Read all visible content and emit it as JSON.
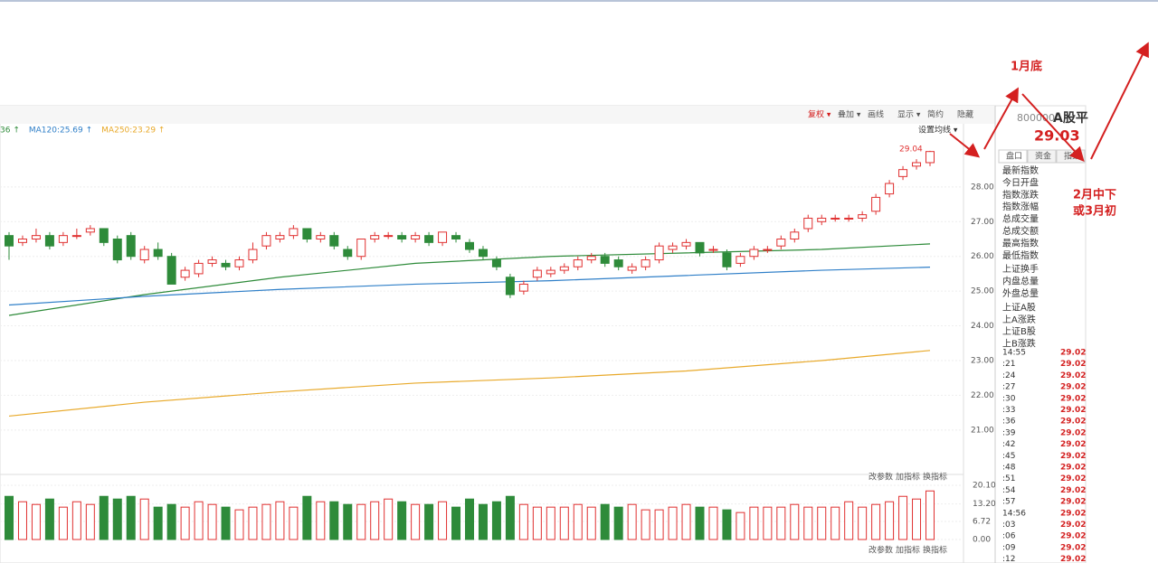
{
  "chart_data": {
    "type": "candlestick",
    "open": [
      26.6,
      26.4,
      26.5,
      26.6,
      26.4,
      26.6,
      26.7,
      26.8,
      26.5,
      26.6,
      25.9,
      26.2,
      26.0,
      25.4,
      25.5,
      25.8,
      25.8,
      25.7,
      25.9,
      26.3,
      26.5,
      26.6,
      26.8,
      26.5,
      26.6,
      26.2,
      26.0,
      26.5,
      26.6,
      26.6,
      26.5,
      26.6,
      26.4,
      26.6,
      26.4,
      26.2,
      25.9,
      25.4,
      25.0,
      25.4,
      25.5,
      25.6,
      25.7,
      25.9,
      26.0,
      25.9,
      25.6,
      25.7,
      25.9,
      26.2,
      26.3,
      26.4,
      26.2,
      26.1,
      25.8,
      26.0,
      26.2,
      26.3,
      26.5,
      26.8,
      27.0,
      27.1,
      27.1,
      27.1,
      27.3,
      27.8,
      28.3,
      28.6,
      28.7
    ],
    "close": [
      26.3,
      26.5,
      26.6,
      26.3,
      26.6,
      26.6,
      26.8,
      26.4,
      25.9,
      26.0,
      26.2,
      26.0,
      25.2,
      25.6,
      25.8,
      25.9,
      25.7,
      25.9,
      26.2,
      26.6,
      26.6,
      26.8,
      26.5,
      26.6,
      26.3,
      26.0,
      26.5,
      26.6,
      26.6,
      26.5,
      26.6,
      26.4,
      26.7,
      26.5,
      26.2,
      26.0,
      25.7,
      24.9,
      25.2,
      25.6,
      25.6,
      25.7,
      25.9,
      26.0,
      25.8,
      25.7,
      25.7,
      25.9,
      26.3,
      26.3,
      26.4,
      26.1,
      26.2,
      25.7,
      26.0,
      26.2,
      26.2,
      26.5,
      26.7,
      27.1,
      27.1,
      27.1,
      27.1,
      27.2,
      27.7,
      28.1,
      28.5,
      28.7,
      29.02
    ],
    "high": [
      26.7,
      26.6,
      26.8,
      26.7,
      26.7,
      26.8,
      26.9,
      26.8,
      26.6,
      26.7,
      26.3,
      26.4,
      26.1,
      25.7,
      25.9,
      26.0,
      25.9,
      26.0,
      26.4,
      26.7,
      26.7,
      26.9,
      26.8,
      26.7,
      26.7,
      26.3,
      26.5,
      26.7,
      26.7,
      26.7,
      26.7,
      26.7,
      26.7,
      26.7,
      26.5,
      26.3,
      26.0,
      25.5,
      25.3,
      25.7,
      25.7,
      25.8,
      26.0,
      26.1,
      26.1,
      26.0,
      25.8,
      26.0,
      26.4,
      26.4,
      26.5,
      26.4,
      26.3,
      26.2,
      26.1,
      26.3,
      26.3,
      26.6,
      26.8,
      27.2,
      27.2,
      27.2,
      27.2,
      27.3,
      27.8,
      28.2,
      28.6,
      28.8,
      29.04
    ],
    "low": [
      25.9,
      26.3,
      26.4,
      26.2,
      26.3,
      26.5,
      26.6,
      26.3,
      25.8,
      25.9,
      25.8,
      25.9,
      25.2,
      25.3,
      25.4,
      25.7,
      25.6,
      25.6,
      25.8,
      26.2,
      26.4,
      26.5,
      26.4,
      26.4,
      26.2,
      25.9,
      25.9,
      26.4,
      26.5,
      26.4,
      26.4,
      26.3,
      26.3,
      26.4,
      26.1,
      25.9,
      25.6,
      24.8,
      24.9,
      25.3,
      25.4,
      25.5,
      25.6,
      25.8,
      25.7,
      25.6,
      25.5,
      25.6,
      25.8,
      26.1,
      26.2,
      26.0,
      26.1,
      25.6,
      25.7,
      25.9,
      26.1,
      26.2,
      26.4,
      26.7,
      26.9,
      27.0,
      27.0,
      27.0,
      27.2,
      27.7,
      28.2,
      28.5,
      28.6
    ],
    "up_color": "#e03030",
    "down_color": "#2e8b3a",
    "ylim": [
      19.85,
      29.22
    ],
    "yticks": [
      {
        "value": 28,
        "label": "28.00"
      },
      {
        "value": 27,
        "label": "27.00"
      },
      {
        "value": 26,
        "label": "26.00"
      },
      {
        "value": 25,
        "label": "25.00"
      },
      {
        "value": 24,
        "label": "24.00"
      },
      {
        "value": 23,
        "label": "23.00"
      },
      {
        "value": 22,
        "label": "22.00"
      },
      {
        "value": 21,
        "label": "21.00"
      }
    ],
    "last_price_label": "29.04",
    "moving_averages": [
      {
        "name": "36 ↑",
        "color": "#2e8b3a",
        "x": [
          0,
          10,
          20,
          30,
          40,
          50,
          60,
          68
        ],
        "values": [
          24.3,
          24.9,
          25.4,
          25.8,
          26.0,
          26.1,
          26.2,
          26.36
        ]
      },
      {
        "name": "MA120:25.69 ↑",
        "color": "#2f7fc8",
        "x": [
          0,
          10,
          20,
          30,
          40,
          50,
          60,
          68
        ],
        "values": [
          24.6,
          24.85,
          25.05,
          25.2,
          25.3,
          25.45,
          25.6,
          25.69
        ]
      },
      {
        "name": "MA250:23.29 ↑",
        "color": "#e8a92a",
        "x": [
          0,
          10,
          20,
          30,
          40,
          50,
          60,
          68
        ],
        "values": [
          21.4,
          21.8,
          22.1,
          22.35,
          22.5,
          22.7,
          23.0,
          23.29
        ]
      }
    ],
    "volume": {
      "values": [
        16,
        14,
        13,
        15,
        12,
        14,
        13,
        16,
        15,
        16,
        15,
        12,
        13,
        12,
        14,
        13,
        12,
        11,
        12,
        13,
        14,
        12,
        16,
        14,
        14,
        13,
        13,
        14,
        15,
        14,
        13,
        13,
        14,
        12,
        15,
        13,
        14,
        16,
        13,
        12,
        12,
        12,
        13,
        12,
        13,
        12,
        13,
        11,
        11,
        12,
        13,
        12,
        12,
        11,
        10,
        12,
        12,
        12,
        13,
        12,
        12,
        12,
        14,
        12,
        13,
        14,
        16,
        15,
        18
      ],
      "ylim": [
        0,
        20.1
      ],
      "yticks": [
        {
          "value": 20.1,
          "label": "20.10"
        },
        {
          "value": 13.2,
          "label": "13.20"
        },
        6.72,
        {
          "value": 0,
          "label": "0.00"
        }
      ]
    }
  },
  "toolbar": [
    "复权 ▾",
    "叠加 ▾",
    "画线",
    "显示 ▾",
    "简约",
    "隐藏"
  ],
  "ma_settings": "设置均线 ▾",
  "indicator_buttons": [
    "改参数",
    "加指标",
    "换指标"
  ],
  "side_panel": {
    "code": "800000",
    "name": "A股平",
    "price": "29.03",
    "tabs": [
      "盘口",
      "资金",
      "指数"
    ],
    "fields": [
      "最新指数",
      "今日开盘",
      "指数涨跌",
      "指数涨幅",
      "总成交量",
      "总成交额",
      "最高指数",
      "最低指数",
      "上证换手",
      "内盘总量",
      "外盘总量",
      "上证A股",
      "上A涨跌",
      "上证B股",
      "上B涨跌"
    ],
    "ticks": [
      [
        "14:55",
        "29.02"
      ],
      [
        ":21",
        "29.02"
      ],
      [
        ":24",
        "29.02"
      ],
      [
        ":27",
        "29.02"
      ],
      [
        ":30",
        "29.02"
      ],
      [
        ":33",
        "29.02"
      ],
      [
        ":36",
        "29.02"
      ],
      [
        ":39",
        "29.02"
      ],
      [
        ":42",
        "29.02"
      ],
      [
        ":45",
        "29.02"
      ],
      [
        ":48",
        "29.02"
      ],
      [
        ":51",
        "29.02"
      ],
      [
        ":54",
        "29.02"
      ],
      [
        ":57",
        "29.02"
      ],
      [
        "14:56",
        "29.02"
      ],
      [
        ":03",
        "29.02"
      ],
      [
        ":06",
        "29.02"
      ],
      [
        ":09",
        "29.02"
      ],
      [
        ":12",
        "29.02"
      ]
    ]
  },
  "annotations": {
    "end_january": "1月底",
    "mid_feb_line1": "2月中下",
    "mid_feb_line2": "或3月初"
  }
}
